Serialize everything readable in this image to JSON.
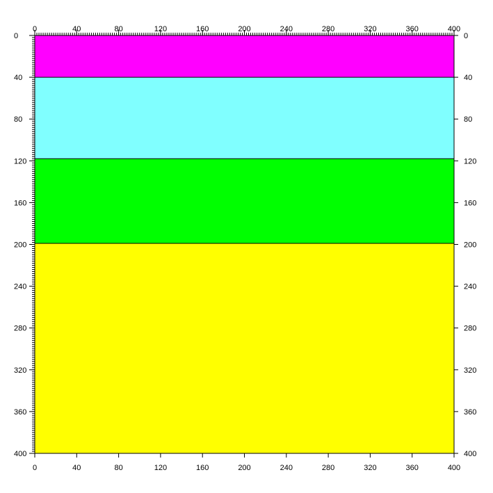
{
  "x_range": [
    0,
    400
  ],
  "y_range": [
    0,
    400
  ],
  "major_step": 40,
  "minor_step": 2,
  "top_tick_labels": [
    "0",
    "40",
    "80",
    "120",
    "160",
    "200",
    "240",
    "280",
    "320",
    "360",
    "400"
  ],
  "bottom_tick_labels": [
    "0",
    "40",
    "80",
    "120",
    "160",
    "200",
    "240",
    "280",
    "320",
    "360",
    "400"
  ],
  "left_tick_labels": [
    "0",
    "40",
    "80",
    "120",
    "160",
    "200",
    "240",
    "280",
    "320",
    "360",
    "400"
  ],
  "right_tick_labels": [
    "0",
    "40",
    "80",
    "120",
    "160",
    "200",
    "240",
    "280",
    "320",
    "360",
    "400"
  ],
  "layers": [
    {
      "top": 0,
      "bottom": 40,
      "color": "#ff00ff"
    },
    {
      "top": 40,
      "bottom": 118,
      "color": "#80ffff"
    },
    {
      "top": 118,
      "bottom": 199,
      "color": "#00ff00"
    },
    {
      "top": 199,
      "bottom": 400,
      "color": "#ffff00"
    }
  ],
  "boundary_color": "#000000"
}
